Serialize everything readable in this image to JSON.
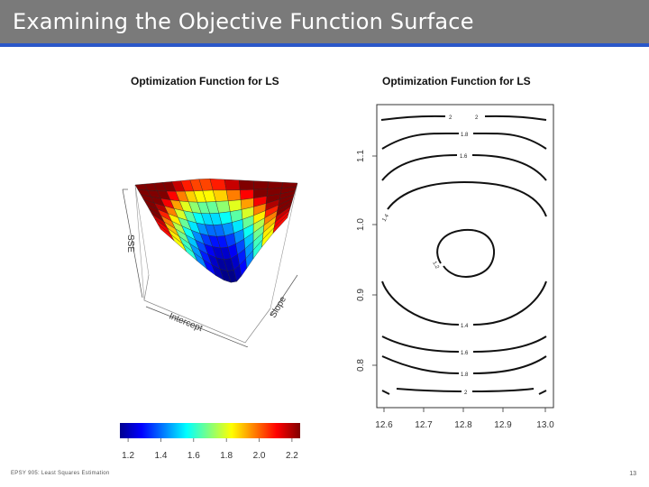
{
  "slide": {
    "title": "Examining the Objective Function Surface",
    "footer_left": "EPSY 905: Least Squares Estimation",
    "page_number": "13"
  },
  "colors": {
    "title_bar": "#7a7a7a",
    "title_rule": "#2a57c8"
  },
  "chart_data": [
    {
      "type": "surface3d",
      "title": "Optimization Function for LS",
      "axis_labels": {
        "x": "Intercept",
        "y": "Slope",
        "z": "SSE"
      },
      "color_scale": {
        "ticks": [
          "1.2",
          "1.4",
          "1.6",
          "1.8",
          "2.0",
          "2.2"
        ],
        "range": [
          1.15,
          2.25
        ],
        "palette": "jet"
      }
    },
    {
      "type": "contour",
      "title": "Optimization Function for LS",
      "x_ticks": [
        "12.6",
        "12.7",
        "12.8",
        "12.9",
        "13.0"
      ],
      "y_ticks": [
        "0.8",
        "0.9",
        "1.0",
        "1.1"
      ],
      "x_range": [
        12.6,
        13.0
      ],
      "y_range": [
        0.75,
        1.17
      ],
      "levels": [
        "1.2",
        "1.4",
        "1.6",
        "1.8",
        "2"
      ],
      "contour_labels": {
        "top_2": "2",
        "top_1_8": "1.8",
        "top_1_6": "1.6",
        "left_1_4": "1.4",
        "center_1_2": "1.2",
        "bottom_1_4": "1.4",
        "bottom_1_6": "1.6",
        "bottom_1_8": "1.8",
        "bottom_2": "2"
      }
    }
  ]
}
